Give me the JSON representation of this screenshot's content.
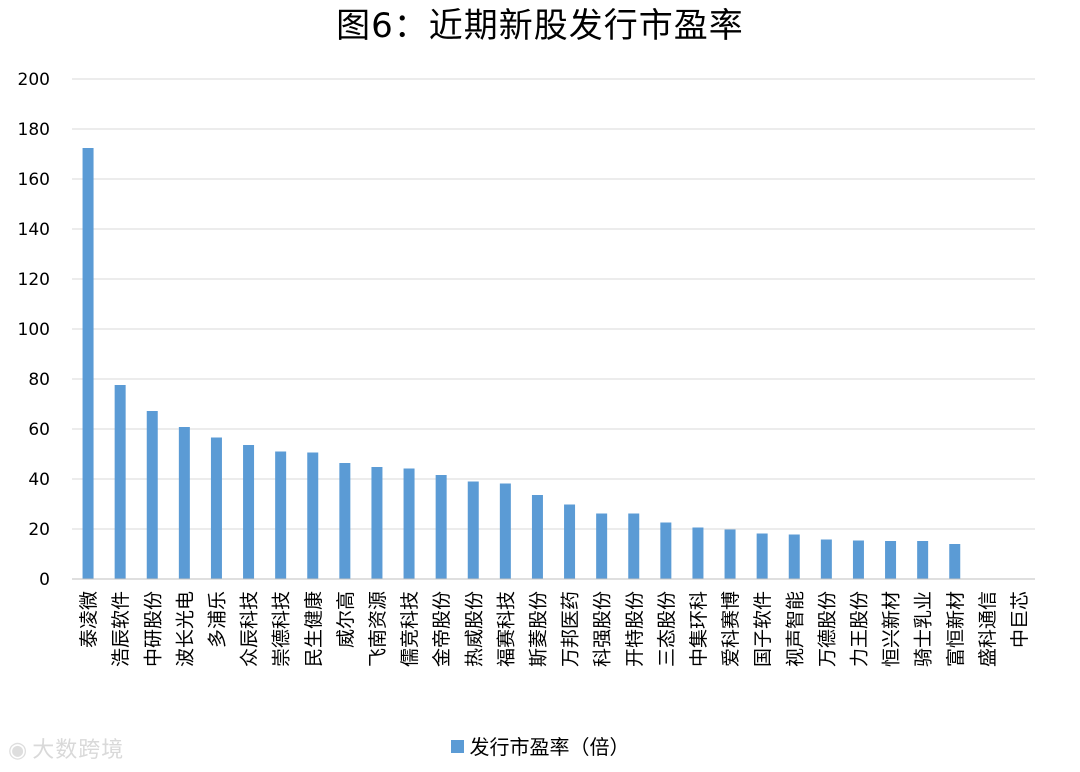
{
  "chart_data": {
    "type": "bar",
    "title": "图6：近期新股发行市盈率",
    "xlabel": "",
    "ylabel": "",
    "ylim": [
      0,
      200
    ],
    "yticks": [
      0,
      20,
      40,
      60,
      80,
      100,
      120,
      140,
      160,
      180,
      200
    ],
    "grid": true,
    "legend_position": "bottom",
    "categories": [
      "泰凌微",
      "浩辰软件",
      "中研股份",
      "波长光电",
      "多浦乐",
      "众辰科技",
      "崇德科技",
      "民生健康",
      "威尔高",
      "飞南资源",
      "儒竞科技",
      "金帝股份",
      "热威股份",
      "福赛科技",
      "斯菱股份",
      "万邦医药",
      "科强股份",
      "开特股份",
      "三态股份",
      "中集环科",
      "爱科赛博",
      "国子软件",
      "视声智能",
      "万德股份",
      "力王股份",
      "恒兴新材",
      "骑士乳业",
      "富恒新材",
      "盛科通信",
      "中巨芯"
    ],
    "series": [
      {
        "name": "发行市盈率（倍）",
        "color": "#5b9bd5",
        "values": [
          172.4,
          77.6,
          67.2,
          60.8,
          56.6,
          53.6,
          51.0,
          50.6,
          46.4,
          44.8,
          44.2,
          41.6,
          39.0,
          38.2,
          33.6,
          29.8,
          26.2,
          26.2,
          22.6,
          20.6,
          19.8,
          18.2,
          17.8,
          15.8,
          15.4,
          15.2,
          15.2,
          14.0,
          0,
          0
        ]
      }
    ]
  },
  "watermark": {
    "icon": "wechat-icon",
    "text": "大数跨境"
  }
}
